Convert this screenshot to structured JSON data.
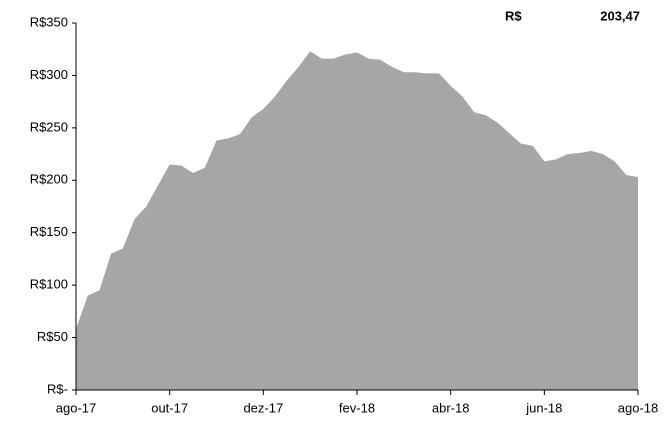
{
  "chart_data": {
    "type": "area",
    "annotation": {
      "currency": "R$",
      "value": "203,47"
    },
    "categories": [
      "ago-17",
      null,
      null,
      null,
      null,
      null,
      null,
      null,
      "out-17",
      null,
      null,
      null,
      null,
      null,
      null,
      null,
      "dez-17",
      null,
      null,
      null,
      null,
      null,
      null,
      null,
      "fev-18",
      null,
      null,
      null,
      null,
      null,
      null,
      null,
      "abr-18",
      null,
      null,
      null,
      null,
      null,
      null,
      null,
      "jun-18",
      null,
      null,
      null,
      null,
      null,
      null,
      null,
      "ago-18"
    ],
    "series": [
      {
        "name": "R$",
        "color": "#a6a6a6",
        "values": [
          58,
          90,
          95,
          130,
          135,
          163,
          175,
          195,
          215,
          214,
          207,
          212,
          238,
          240,
          244,
          260,
          268,
          280,
          295,
          308,
          323,
          316,
          316,
          320,
          322,
          316,
          315,
          308,
          303,
          303,
          302,
          302,
          290,
          280,
          265,
          262,
          255,
          245,
          235,
          233,
          218,
          220,
          225,
          226,
          228,
          225,
          218,
          205,
          203
        ]
      }
    ],
    "ylim": [
      0,
      350
    ],
    "yticks": [
      {
        "value": 0,
        "label": "R$-"
      },
      {
        "value": 50,
        "label": "R$50"
      },
      {
        "value": 100,
        "label": "R$100"
      },
      {
        "value": 150,
        "label": "R$150"
      },
      {
        "value": 200,
        "label": "R$200"
      },
      {
        "value": 250,
        "label": "R$250"
      },
      {
        "value": 300,
        "label": "R$300"
      },
      {
        "value": 350,
        "label": "R$350"
      }
    ],
    "grid": false
  }
}
